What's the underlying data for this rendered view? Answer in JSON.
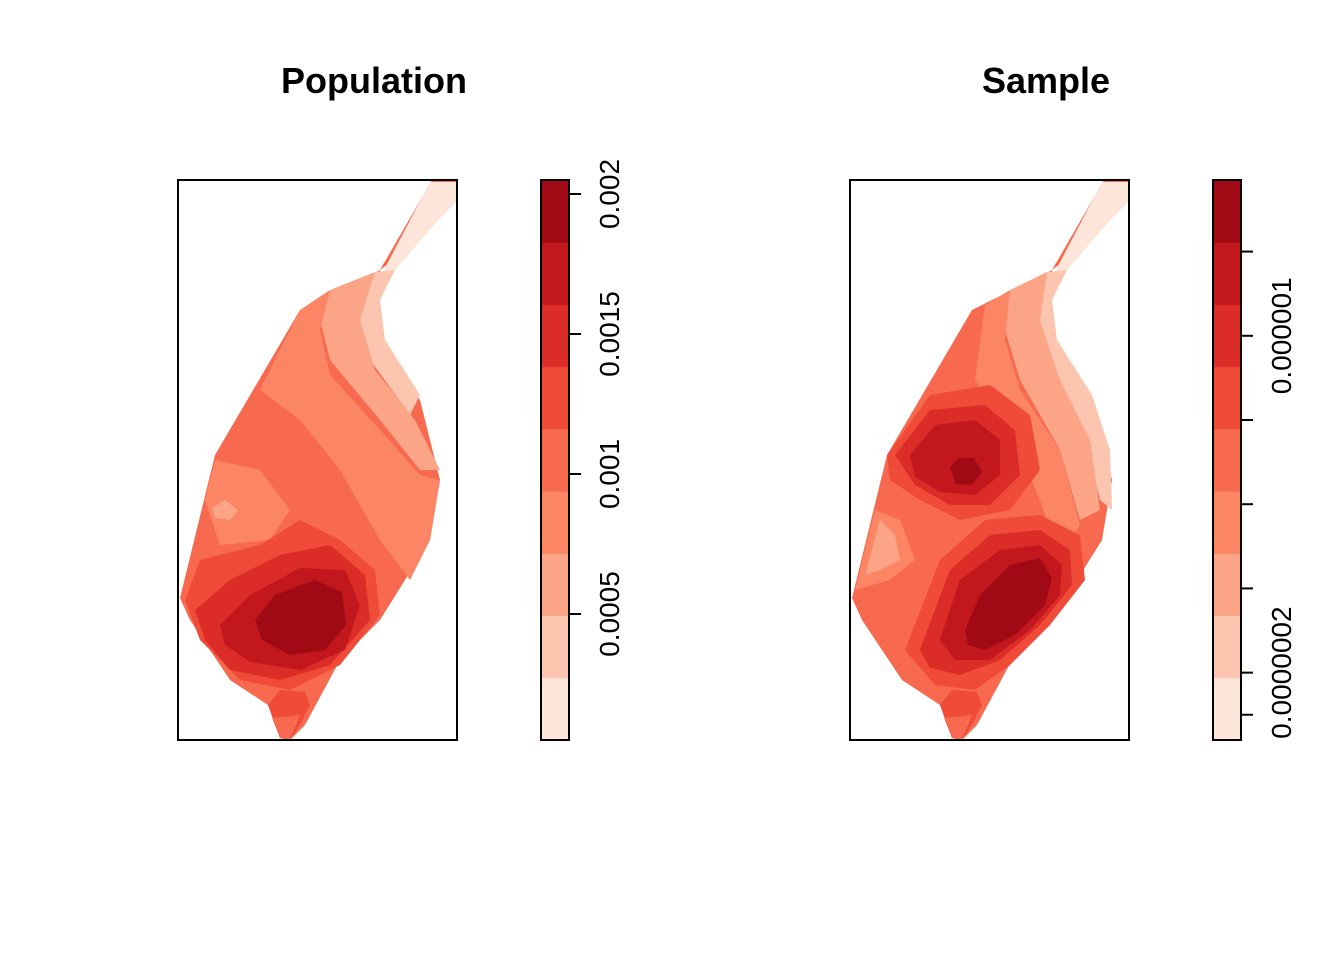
{
  "chart_data": [
    {
      "type": "heatmap",
      "title": "Population",
      "xlabel": "",
      "ylabel": "",
      "legend": "right",
      "grid": false,
      "color_scale": {
        "levels": [
          "#FEE5D9",
          "#FCC5B0",
          "#FCA486",
          "#FB8565",
          "#F76A4F",
          "#EF4B38",
          "#DC2C27",
          "#C3171E",
          "#A00A15"
        ],
        "min": 5e-05,
        "max": 0.00205,
        "ticks": [
          0.0005,
          0.001,
          0.0015,
          0.002
        ],
        "tick_labels": [
          "0.0005",
          "0.001",
          "0.0015",
          "0.002"
        ]
      }
    },
    {
      "type": "heatmap",
      "title": "Sample",
      "xlabel": "",
      "ylabel": "",
      "legend": "right",
      "grid": false,
      "color_scale": {
        "levels": [
          "#FEE5D9",
          "#FCC5B0",
          "#FCA486",
          "#FB8565",
          "#F76A4F",
          "#EF4B38",
          "#DC2C27",
          "#C3171E",
          "#A00A15"
        ],
        "min": 4e-08,
        "max": 1.37e-06,
        "ticks": [
          1e-07,
          2e-07,
          4e-07,
          6e-07,
          8e-07,
          1e-06,
          1.2e-06
        ],
        "tick_labels": [
          "",
          "0.0000002",
          "",
          "",
          "",
          "0.000001",
          ""
        ]
      }
    }
  ]
}
